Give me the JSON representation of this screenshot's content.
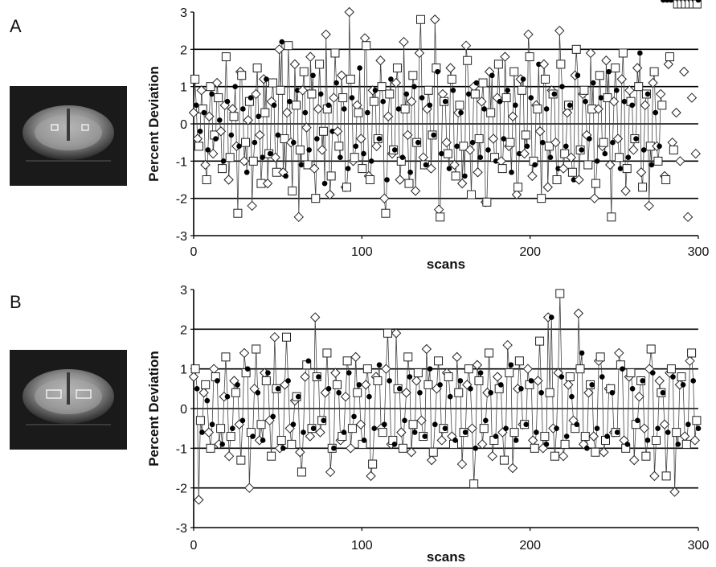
{
  "panels": [
    {
      "label": "A",
      "roi_shape": "small-squares"
    },
    {
      "label": "B",
      "roi_shape": "wide-rectangles"
    }
  ],
  "chart_data": [
    {
      "type": "line",
      "panel": "A",
      "xlabel": "scans",
      "ylabel": "Percent Deviation",
      "xlim": [
        0,
        300
      ],
      "ylim": [
        -3,
        3
      ],
      "x_ticks": [
        "0",
        "100",
        "200",
        "300"
      ],
      "y_ticks": [
        "3",
        "2",
        "1",
        "0",
        "-1",
        "-2",
        "-3"
      ],
      "horizontal_gridlines": [
        -2,
        -1,
        0,
        1,
        2
      ],
      "markers": [
        "diamond-open",
        "square-open",
        "circle-filled"
      ],
      "series": [
        {
          "marker": "diamond-open",
          "values": [
            0.3,
            -0.4,
            0.9,
            -1.1,
            0.2,
            -0.8,
            1.1,
            -0.2,
            0.5,
            -1.5,
            0.4,
            -0.6,
            1.4,
            -1.0,
            0.1,
            -2.2,
            0.8,
            -0.3,
            1.2,
            -1.6,
            0.6,
            -0.9,
            2.0,
            -1.3,
            0.3,
            -0.5,
            1.6,
            -2.5,
            0.9,
            -0.1,
            1.8,
            -1.2,
            0.4,
            -0.7,
            2.4,
            -1.9,
            0.7,
            -0.2,
            1.3,
            -1.7,
            3.0,
            -1.0,
            0.5,
            -0.4,
            2.3,
            -1.4,
            0.9,
            -0.6,
            1.7,
            -2.0,
            0.2,
            -0.8,
            1.1,
            -1.5,
            2.2,
            -0.3,
            0.6,
            -1.8,
            1.9,
            -0.9,
            0.4,
            -1.2,
            2.8,
            -2.3,
            0.8,
            -0.5,
            1.5,
            -1.1,
            0.3,
            -1.6,
            2.1,
            -0.7,
            1.0,
            -1.3,
            0.6,
            -2.1,
            1.4,
            -0.4,
            0.7,
            -1.0,
            1.8,
            -0.6,
            0.2,
            -1.9,
            1.2,
            -0.8,
            2.4,
            -1.4,
            0.5,
            -0.2,
            1.6,
            -1.7,
            0.9,
            -0.5,
            2.5,
            -1.2,
            0.3,
            -0.9,
            1.3,
            -1.5,
            0.8,
            -0.3,
            1.9,
            -2.0,
            0.4,
            -0.6,
            1.7,
            -1.1,
            0.6,
            -0.4,
            1.2,
            -1.8,
            0.9,
            -0.7,
            1.5,
            -1.3,
            0.5,
            -2.2,
            1.1,
            -0.6,
            0.8,
            -1.4,
            1.6,
            -0.5,
            0.3,
            -1.0,
            1.4,
            -2.5,
            0.7,
            -0.8
          ]
        },
        {
          "marker": "square-open",
          "values": [
            1.2,
            -0.6,
            0.4,
            -1.5,
            1.0,
            -0.3,
            0.7,
            -1.2,
            1.8,
            -0.9,
            0.2,
            -2.4,
            1.3,
            -0.5,
            0.6,
            -1.0,
            1.5,
            -1.6,
            0.3,
            -0.8,
            1.1,
            -1.3,
            0.9,
            -0.4,
            2.1,
            -1.8,
            0.5,
            -0.7,
            1.4,
            -1.1,
            0.8,
            -2.0,
            1.6,
            -0.2,
            0.4,
            -1.4,
            1.9,
            -0.6,
            0.7,
            -1.7,
            1.2,
            -0.9,
            0.3,
            -1.2,
            2.1,
            -1.5,
            0.6,
            -0.4,
            1.0,
            -2.4,
            0.8,
            -0.7,
            1.5,
            -1.0,
            0.4,
            -1.6,
            1.3,
            -0.5,
            2.8,
            -1.1,
            0.9,
            -0.3,
            1.5,
            -2.5,
            0.6,
            -0.8,
            1.2,
            -1.4,
            0.5,
            -0.6,
            1.7,
            -1.9,
            0.8,
            -0.4,
            1.1,
            -2.1,
            0.3,
            -0.9,
            1.6,
            -1.2,
            0.7,
            -0.5,
            1.4,
            -1.7,
            0.9,
            -0.3,
            1.8,
            -1.0,
            0.4,
            -2.0,
            1.2,
            -0.6,
            0.8,
            -1.5,
            1.6,
            -0.8,
            0.5,
            -1.3,
            2.0,
            -0.7,
            0.9,
            -1.1,
            0.4,
            -1.6,
            1.3,
            -0.5,
            0.7,
            -2.5,
            1.5,
            -0.9,
            1.9,
            -1.2,
            0.6,
            -0.4,
            1.0,
            -1.7,
            0.8,
            -0.6,
            1.4,
            -1.0,
            0.5,
            -1.5,
            1.8,
            -0.7
          ]
        },
        {
          "marker": "circle-filled",
          "values": [
            0.5,
            -0.2,
            0.3,
            -0.7,
            0.8,
            -0.4,
            0.1,
            -1.0,
            0.6,
            -0.3,
            1.0,
            -0.6,
            0.4,
            -1.3,
            0.7,
            -0.5,
            0.2,
            -0.9,
            1.2,
            -0.8,
            0.5,
            -0.3,
            2.2,
            -1.4,
            0.6,
            -0.5,
            0.9,
            -1.1,
            0.3,
            -0.7,
            1.3,
            -0.4,
            0.8,
            -1.6,
            0.5,
            -0.2,
            1.1,
            -0.9,
            0.4,
            -1.2,
            0.7,
            -0.6,
            1.5,
            -0.8,
            0.3,
            -1.0,
            0.9,
            -0.4,
            0.6,
            -1.5,
            1.2,
            -0.7,
            0.4,
            -0.9,
            0.8,
            -1.3,
            1.0,
            -0.5,
            0.7,
            -1.1,
            0.5,
            -0.3,
            1.4,
            -0.8,
            0.6,
            -1.2,
            0.9,
            -0.6,
            0.3,
            -1.4,
            0.8,
            -0.5,
            1.1,
            -0.9,
            0.4,
            -0.7,
            1.3,
            -1.0,
            0.6,
            -0.4,
            0.9,
            -1.3,
            0.5,
            -0.8,
            1.2,
            -0.6,
            0.7,
            -1.1,
            1.6,
            -0.5,
            0.4,
            -0.9,
            0.8,
            -1.2,
            1.0,
            -0.6,
            0.5,
            -1.5,
            1.3,
            -0.7,
            0.6,
            -0.4,
            1.1,
            -1.0,
            0.7,
            -0.8,
            1.4,
            -0.5,
            0.9,
            -1.2,
            0.6,
            -0.9,
            0.5,
            -0.4,
            1.9,
            -0.7,
            0.8,
            -1.1,
            0.3,
            -0.6
          ]
        }
      ]
    },
    {
      "type": "line",
      "panel": "B",
      "xlabel": "scans",
      "ylabel": "Percent Deviation",
      "xlim": [
        0,
        300
      ],
      "ylim": [
        -3,
        3
      ],
      "x_ticks": [
        "0",
        "100",
        "200",
        "300"
      ],
      "y_ticks": [
        "3",
        "2",
        "1",
        "0",
        "-1",
        "-2",
        "-3"
      ],
      "horizontal_gridlines": [
        -2,
        -1,
        0,
        1,
        2
      ],
      "markers": [
        "diamond-open",
        "square-open",
        "circle-filled"
      ],
      "series": [
        {
          "marker": "diamond-open",
          "values": [
            0.8,
            -2.3,
            0.4,
            -0.6,
            1.0,
            -0.9,
            0.3,
            -1.2,
            0.7,
            -0.4,
            1.4,
            -2.0,
            0.5,
            -0.8,
            0.9,
            -0.3,
            1.8,
            -1.0,
            0.6,
            -0.5,
            0.2,
            -1.1,
            0.8,
            -0.7,
            2.3,
            -0.6,
            0.4,
            -1.6,
            0.9,
            -0.8,
            0.3,
            -1.0,
            1.3,
            -0.4,
            0.6,
            -1.7,
            0.8,
            -0.5,
            1.0,
            -0.9,
            1.9,
            -0.6,
            0.4,
            -1.1,
            0.7,
            -0.3,
            1.5,
            -1.3,
            0.5,
            -0.8,
            0.9,
            -0.7,
            1.3,
            -1.4,
            0.6,
            -0.5,
            1.1,
            -0.9,
            0.4,
            -1.2,
            0.8,
            -0.6,
            1.6,
            -1.5,
            0.5,
            -0.4,
            1.0,
            -0.8,
            0.7,
            -1.0,
            2.3,
            -0.5,
            0.9,
            -1.2,
            0.6,
            -0.3,
            2.4,
            -0.9,
            0.4,
            -0.7,
            1.2,
            -1.1,
            0.5,
            -0.6,
            1.4,
            -0.8,
            0.8,
            -1.3,
            0.3,
            -0.5,
            1.0,
            -1.7,
            0.7,
            -0.4,
            0.9,
            -2.1,
            0.6,
            -0.7,
            1.2,
            -0.8
          ]
        },
        {
          "marker": "square-open",
          "values": [
            1.0,
            -0.3,
            0.6,
            -1.0,
            0.8,
            -0.5,
            1.3,
            -0.7,
            0.4,
            -1.3,
            0.9,
            -0.6,
            1.5,
            -0.4,
            0.7,
            -1.2,
            0.5,
            -0.8,
            1.8,
            -0.9,
            0.3,
            -1.6,
            1.1,
            -0.5,
            0.8,
            -0.3,
            1.4,
            -1.0,
            0.6,
            -0.7,
            1.2,
            -0.5,
            0.4,
            -0.9,
            1.0,
            -1.4,
            0.7,
            -0.6,
            1.9,
            -0.8,
            0.5,
            -1.0,
            1.3,
            -0.4,
            0.9,
            -0.7,
            0.6,
            -1.1,
            1.2,
            -0.5,
            0.8,
            -0.9,
            0.4,
            -0.6,
            1.0,
            -1.9,
            0.7,
            -0.5,
            1.4,
            -0.8,
            0.5,
            -1.3,
            0.9,
            -0.6,
            1.2,
            -0.4,
            0.6,
            -1.0,
            1.7,
            -0.7,
            0.4,
            -1.2,
            2.9,
            -0.9,
            0.8,
            -0.5,
            1.0,
            -0.7,
            0.6,
            -1.1,
            1.3,
            -0.8,
            0.5,
            -0.6,
            1.1,
            -1.0,
            0.9,
            -0.4,
            0.7,
            -1.2,
            1.5,
            -0.8,
            0.4,
            -1.7,
            1.0,
            -0.6,
            0.8,
            -0.9,
            1.4,
            -0.3
          ]
        },
        {
          "marker": "circle-filled",
          "values": [
            0.5,
            -0.6,
            0.2,
            -0.4,
            0.7,
            -0.9,
            0.3,
            -0.5,
            0.6,
            -0.3,
            1.0,
            -0.7,
            0.4,
            -0.8,
            0.9,
            -0.2,
            0.5,
            -1.0,
            0.7,
            -0.4,
            0.3,
            -0.6,
            1.2,
            -0.5,
            0.8,
            -0.3,
            0.5,
            -1.0,
            0.4,
            -0.6,
            0.9,
            -0.2,
            0.6,
            -0.8,
            0.3,
            -0.5,
            1.1,
            -0.4,
            0.7,
            -0.9,
            0.5,
            -0.3,
            0.8,
            -0.6,
            0.4,
            -0.7,
            1.0,
            -0.4,
            0.6,
            -0.5,
            0.3,
            -0.8,
            0.7,
            -0.6,
            0.5,
            -1.0,
            0.9,
            -0.3,
            0.4,
            -0.7,
            0.6,
            -0.5,
            1.1,
            -0.8,
            0.5,
            -0.4,
            0.7,
            -0.6,
            0.4,
            -0.9,
            2.3,
            -0.5,
            0.8,
            -0.7,
            0.3,
            -0.4,
            1.4,
            -1.0,
            0.6,
            -0.5,
            0.8,
            -0.7,
            0.4,
            -0.6,
            1.0,
            -0.9,
            0.5,
            -0.3,
            0.7,
            -0.8,
            0.9,
            -0.5,
            0.4,
            -0.6,
            0.8,
            -0.9,
            0.6,
            -0.4,
            0.7,
            -0.5
          ]
        }
      ]
    }
  ]
}
